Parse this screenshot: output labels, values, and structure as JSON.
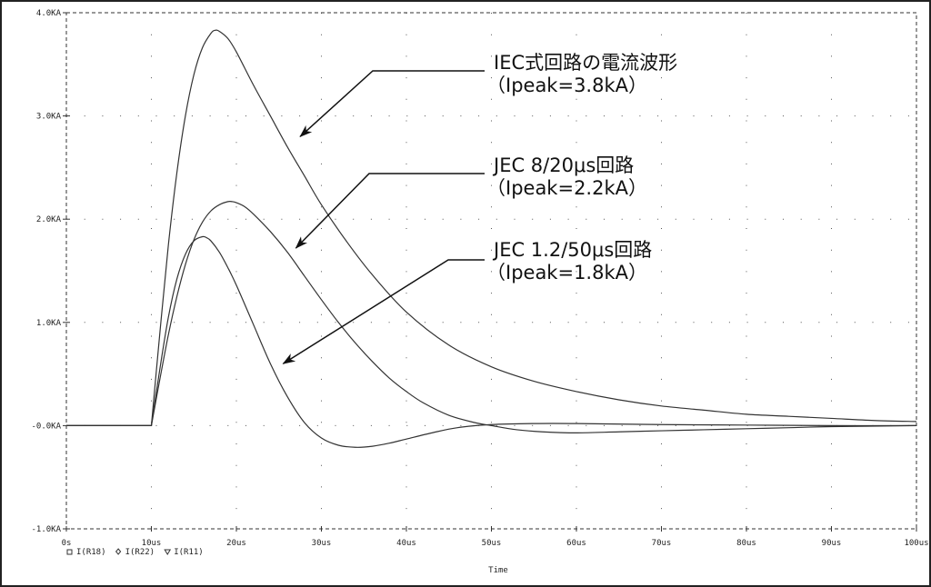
{
  "chart_data": {
    "type": "line",
    "xlabel": "Time",
    "ylabel": "",
    "xlim": [
      0,
      100
    ],
    "ylim": [
      -1.0,
      4.0
    ],
    "x_unit": "us",
    "y_unit": "kA",
    "grid": true,
    "x_ticks": [
      0,
      10,
      20,
      30,
      40,
      50,
      60,
      70,
      80,
      90,
      100
    ],
    "x_tick_labels": [
      "0s",
      "10us",
      "20us",
      "30us",
      "40us",
      "50us",
      "60us",
      "70us",
      "80us",
      "90us",
      "100us"
    ],
    "y_ticks": [
      4,
      3,
      2,
      1,
      0,
      -1
    ],
    "y_tick_labels": [
      "4.0KA",
      "3.0KA",
      "2.0KA",
      "1.0KA",
      "-0.0KA",
      "-1.0KA"
    ],
    "legend": {
      "placement": "bottom-left",
      "entries": [
        {
          "marker": "square",
          "label": "I(R18)"
        },
        {
          "marker": "diamond",
          "label": "I(R22)"
        },
        {
          "marker": "triangle-down",
          "label": "I(R11)"
        }
      ]
    },
    "series": [
      {
        "x": [
          0,
          10,
          11,
          12,
          13,
          14,
          15,
          16,
          17,
          17.5,
          18,
          19,
          20,
          22,
          24,
          26,
          28,
          30,
          33,
          36,
          40,
          45,
          50,
          55,
          60,
          65,
          70,
          75,
          80,
          85,
          90,
          95,
          100
        ],
        "y": [
          0,
          0,
          0.9,
          1.75,
          2.45,
          3.0,
          3.4,
          3.66,
          3.8,
          3.83,
          3.82,
          3.75,
          3.62,
          3.3,
          3.0,
          2.7,
          2.42,
          2.14,
          1.78,
          1.46,
          1.1,
          0.78,
          0.57,
          0.43,
          0.33,
          0.25,
          0.19,
          0.15,
          0.11,
          0.09,
          0.07,
          0.05,
          0.04
        ]
      },
      {
        "x": [
          0,
          10,
          11,
          12,
          13,
          14,
          15,
          16,
          17,
          18,
          19,
          19.5,
          20,
          21,
          22,
          24,
          26,
          28,
          30,
          32,
          34,
          36,
          38,
          40,
          42,
          45,
          48,
          50,
          53,
          56,
          60,
          65,
          70,
          75,
          80,
          85,
          90,
          100
        ],
        "y": [
          0,
          0,
          0.45,
          0.88,
          1.25,
          1.56,
          1.8,
          1.97,
          2.08,
          2.14,
          2.17,
          2.17,
          2.16,
          2.12,
          2.05,
          1.88,
          1.68,
          1.45,
          1.22,
          1.0,
          0.8,
          0.62,
          0.46,
          0.33,
          0.22,
          0.1,
          0.03,
          0.0,
          -0.04,
          -0.06,
          -0.07,
          -0.06,
          -0.05,
          -0.04,
          -0.03,
          -0.02,
          -0.01,
          0
        ]
      },
      {
        "x": [
          0,
          10,
          11,
          12,
          13,
          14,
          15,
          16,
          16.5,
          17,
          18,
          19,
          20,
          22,
          24,
          26,
          28,
          30,
          32,
          34,
          36,
          38,
          40,
          43,
          46,
          50,
          55,
          60,
          70,
          80,
          90,
          100
        ],
        "y": [
          0,
          0,
          0.55,
          1.05,
          1.42,
          1.66,
          1.79,
          1.83,
          1.82,
          1.79,
          1.68,
          1.53,
          1.36,
          0.98,
          0.6,
          0.28,
          0.03,
          -0.12,
          -0.19,
          -0.21,
          -0.2,
          -0.17,
          -0.13,
          -0.07,
          -0.02,
          0.01,
          0.02,
          0.02,
          0.01,
          0.005,
          0,
          0
        ]
      }
    ],
    "annotations": [
      {
        "lines": [
          "IEC式回路の電流波形",
          "（Ipeak=3.8kA）"
        ],
        "arrow_to": [
          27.5,
          2.8
        ]
      },
      {
        "lines": [
          "JEC 8/20μs回路",
          "（Ipeak=2.2kA）"
        ],
        "arrow_to": [
          27.0,
          1.72
        ]
      },
      {
        "lines": [
          "JEC 1.2/50μs回路",
          "（Ipeak=1.8kA）"
        ],
        "arrow_to": [
          25.5,
          0.6
        ]
      }
    ],
    "colors": {
      "lines": "#333333",
      "grid": "#555555",
      "text": "#111111"
    }
  }
}
